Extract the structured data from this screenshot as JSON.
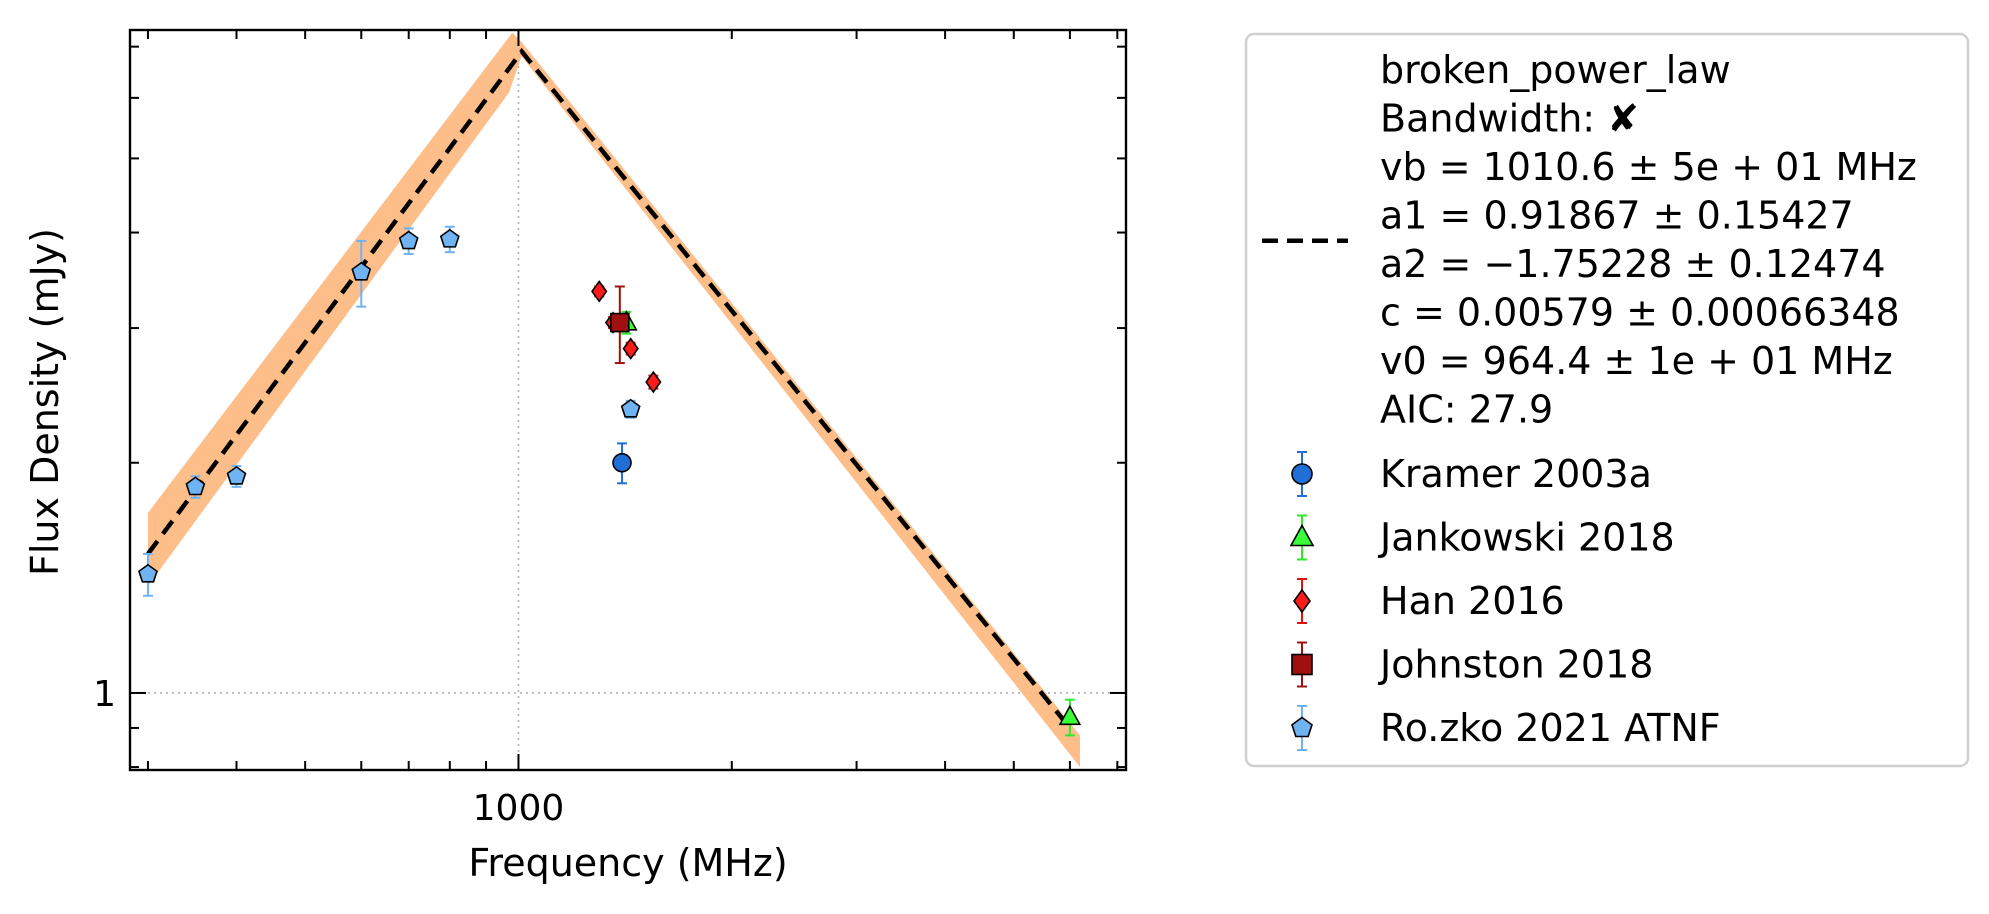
{
  "chart_data": {
    "type": "scatter",
    "title": "",
    "xlabel": "Frequency (MHz)",
    "ylabel": "Flux Density (mJy)",
    "x_scale": "log",
    "y_scale": "log",
    "xlim": [
      283,
      7200
    ],
    "ylim": [
      0.793,
      7.36
    ],
    "x_ticks": [
      {
        "value": 1000,
        "label": "1000"
      }
    ],
    "y_ticks": [
      {
        "value": 1,
        "label": "1"
      }
    ],
    "grid": "dotted lines at labelled ticks",
    "legend_position": "outside-right",
    "fit": {
      "legend_lines": [
        "broken_power_law",
        "Bandwidth: ✘",
        "vb = 1010.6 ± 5e + 01 MHz",
        "a1 = 0.91867 ± 0.15427",
        "a2 = −1.75228 ± 0.12474",
        "c = 0.00579 ± 0.00066348",
        "v0 = 964.4 ± 1e + 01 MHz",
        "AIC: 27.9"
      ],
      "line_color": "#000000",
      "band_color": "#fdbb84",
      "curve": [
        [
          300,
          1.52
        ],
        [
          1010.6,
          6.9
        ],
        [
          6000,
          0.9
        ]
      ],
      "band_upper": [
        [
          300,
          1.72
        ],
        [
          980,
          7.3
        ],
        [
          1010,
          7.1
        ],
        [
          6200,
          0.88
        ]
      ],
      "band_lower": [
        [
          300,
          1.38
        ],
        [
          970,
          6.1
        ],
        [
          1010,
          6.8
        ],
        [
          6200,
          0.8
        ]
      ]
    },
    "series": [
      {
        "name": "Kramer 2003a",
        "marker": "circle",
        "color": "#1f6fd6",
        "err_color": "#1f6fd6",
        "points": [
          {
            "x": 1400,
            "y": 2.0,
            "yerr": 0.12
          }
        ]
      },
      {
        "name": "Jankowski 2018",
        "marker": "triangle",
        "color": "#39ff39",
        "err_color": "#2ee82e",
        "points": [
          {
            "x": 1420,
            "y": 3.05,
            "yerr": 0.1
          },
          {
            "x": 6000,
            "y": 0.93,
            "yerr": 0.05
          }
        ]
      },
      {
        "name": "Han 2016",
        "marker": "diamond",
        "color": "#ff1a1a",
        "err_color": "#e01010",
        "points": [
          {
            "x": 1300,
            "y": 3.35,
            "yerr": 0.05
          },
          {
            "x": 1360,
            "y": 3.05,
            "yerr": 0.05
          },
          {
            "x": 1440,
            "y": 2.82,
            "yerr": 0.05
          },
          {
            "x": 1550,
            "y": 2.55,
            "yerr": 0.05
          }
        ]
      },
      {
        "name": "Johnston 2018",
        "marker": "square",
        "color": "#a01010",
        "err_color": "#a01010",
        "points": [
          {
            "x": 1390,
            "y": 3.05,
            "yerr": 0.35
          }
        ]
      },
      {
        "name": "Ro.zko 2021 ATNF",
        "marker": "pentagon",
        "color": "#6fb3f2",
        "err_color": "#6fb3f2",
        "points": [
          {
            "x": 300,
            "y": 1.43,
            "yerr": 0.09
          },
          {
            "x": 350,
            "y": 1.86,
            "yerr": 0.06
          },
          {
            "x": 400,
            "y": 1.92,
            "yerr": 0.06
          },
          {
            "x": 600,
            "y": 3.55,
            "yerr": 0.35
          },
          {
            "x": 700,
            "y": 3.9,
            "yerr": 0.15
          },
          {
            "x": 800,
            "y": 3.92,
            "yerr": 0.15
          },
          {
            "x": 1440,
            "y": 2.35,
            "yerr": 0.06
          }
        ]
      }
    ]
  }
}
